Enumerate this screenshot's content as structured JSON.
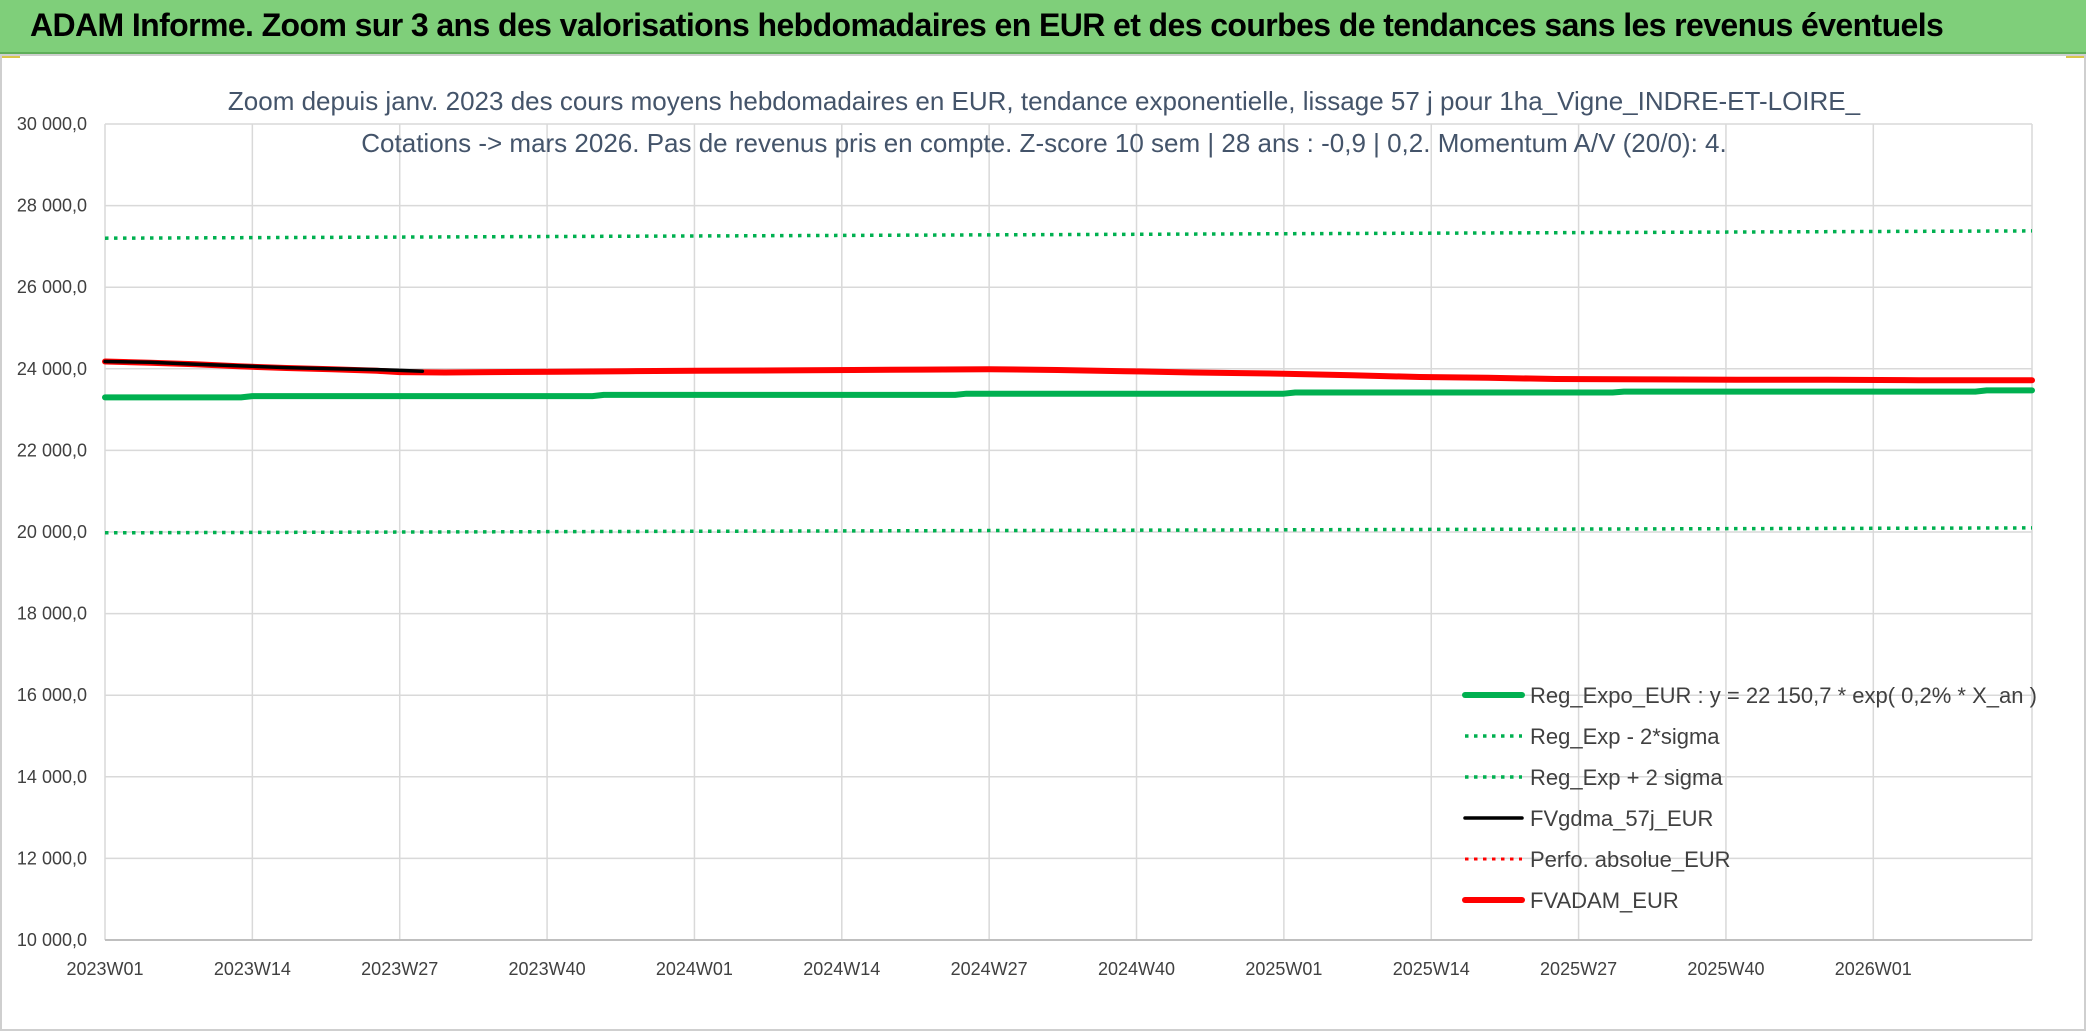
{
  "banner": {
    "title": "ADAM Informe. Zoom sur 3 ans des valorisations hebdomadaires en EUR et des courbes de tendances sans les revenus éventuels"
  },
  "chart_data": {
    "type": "line",
    "title": "Zoom depuis janv. 2023 des cours moyens hebdomadaires en EUR, tendance exponentielle, lissage 57 j pour 1ha_Vigne_INDRE-ET-LOIRE_",
    "subtitle": "Cotations -> mars 2026. Pas de revenus pris en compte. Z-score 10 sem | 28 ans : -0,9 | 0,2. Momentum A/V (20/0): 4.",
    "xlabel": "",
    "ylabel": "",
    "ylim": [
      10000,
      30000
    ],
    "yticks": [
      10000,
      12000,
      14000,
      16000,
      18000,
      20000,
      22000,
      24000,
      26000,
      28000,
      30000
    ],
    "ytick_labels": [
      "10 000,0",
      "12 000,0",
      "14 000,0",
      "16 000,0",
      "18 000,0",
      "20 000,0",
      "22 000,0",
      "24 000,0",
      "26 000,0",
      "28 000,0",
      "30 000,0"
    ],
    "x_tick_labels": [
      "2023W01",
      "2023W14",
      "2023W27",
      "2023W40",
      "2024W01",
      "2024W14",
      "2024W27",
      "2024W40",
      "2025W01",
      "2025W14",
      "2025W27",
      "2025W40",
      "2026W01"
    ],
    "x_tick_weeks": [
      0,
      13,
      26,
      39,
      52,
      65,
      78,
      91,
      104,
      117,
      130,
      143,
      156
    ],
    "x_last_week": 170,
    "grid": true,
    "legend_position": "bottom-right",
    "series": [
      {
        "name": "Reg_Expo_EUR : y = 22 150,7 * exp( 0,2% *  X_an )",
        "color": "#00b050",
        "style": "solid",
        "width": 6,
        "x": [
          0,
          12,
          13,
          43,
          44,
          75,
          76,
          104,
          105,
          133,
          134,
          165,
          166,
          170
        ],
        "values": [
          23300,
          23300,
          23330,
          23330,
          23360,
          23360,
          23390,
          23390,
          23420,
          23420,
          23440,
          23440,
          23470,
          23470
        ]
      },
      {
        "name": "Reg_Exp - 2*sigma",
        "color": "#00b050",
        "style": "dotted",
        "width": 3.5,
        "x": [
          0,
          170
        ],
        "values": [
          19980,
          20100
        ]
      },
      {
        "name": "Reg_Exp + 2 sigma",
        "color": "#00b050",
        "style": "dotted",
        "width": 3.5,
        "x": [
          0,
          170
        ],
        "values": [
          27200,
          27380
        ]
      },
      {
        "name": "FVgdma_57j_EUR",
        "color": "#000000",
        "style": "solid",
        "width": 3.5,
        "x": [
          0,
          4,
          8,
          12,
          16,
          20,
          24,
          26,
          28
        ],
        "values": [
          24180,
          24160,
          24110,
          24070,
          24030,
          24000,
          23980,
          23960,
          23940
        ]
      },
      {
        "name": "Perfo. absolue_EUR",
        "color": "#ff0000",
        "style": "dotted",
        "width": 3,
        "x": [],
        "values": []
      },
      {
        "name": "FVADAM_EUR",
        "color": "#ff0000",
        "style": "solid",
        "width": 6,
        "x": [
          0,
          4,
          8,
          12,
          16,
          20,
          24,
          26,
          30,
          34,
          40,
          46,
          52,
          60,
          66,
          72,
          78,
          84,
          90,
          96,
          104,
          110,
          116,
          122,
          128,
          136,
          144,
          152,
          160,
          170
        ],
        "values": [
          24180,
          24150,
          24110,
          24060,
          24020,
          23990,
          23950,
          23920,
          23910,
          23920,
          23930,
          23940,
          23950,
          23960,
          23970,
          23980,
          23990,
          23970,
          23940,
          23910,
          23880,
          23840,
          23800,
          23780,
          23750,
          23740,
          23730,
          23730,
          23720,
          23720
        ]
      }
    ]
  }
}
